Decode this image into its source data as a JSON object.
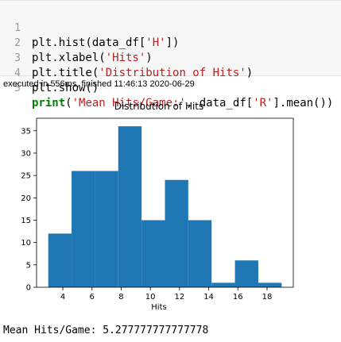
{
  "code_cell": {
    "line_numbers": [
      "1",
      "2",
      "3",
      "4",
      "5"
    ],
    "lines": [
      {
        "pre": "plt.hist(data_df[",
        "str": "'H'",
        "post": "])"
      },
      {
        "pre": "plt.xlabel(",
        "str": "'Hits'",
        "post": ")"
      },
      {
        "pre": "plt.title(",
        "str": "'Distribution of Hits'",
        "post": ")"
      },
      {
        "pre": "plt.show()",
        "str": "",
        "post": ""
      },
      {
        "kw": "print",
        "pre": "(",
        "str": "'Mean Hits/Game:'",
        "mid": ", data_df[",
        "str2": "'R'",
        "post": "].mean())"
      }
    ]
  },
  "execution_info": "executed in 556ms, finished 11:46:13 2020-06-29",
  "chart_data": {
    "type": "bar",
    "title": "Distribution of Hits",
    "xlabel": "Hits",
    "ylabel": "",
    "bins": [
      [
        3.0,
        4.6
      ],
      [
        4.6,
        6.2
      ],
      [
        6.2,
        7.8
      ],
      [
        7.8,
        9.4
      ],
      [
        9.4,
        11.0
      ],
      [
        11.0,
        12.6
      ],
      [
        12.6,
        14.2
      ],
      [
        14.2,
        15.8
      ],
      [
        15.8,
        17.4
      ],
      [
        17.4,
        19.0
      ]
    ],
    "values": [
      12,
      26,
      26,
      36,
      15,
      24,
      15,
      1,
      6,
      1
    ],
    "xlim": [
      2.2,
      19.8
    ],
    "ylim": [
      0,
      37.8
    ],
    "xticks": [
      "4",
      "6",
      "8",
      "10",
      "12",
      "14",
      "16",
      "18"
    ],
    "yticks": [
      "0",
      "5",
      "10",
      "15",
      "20",
      "25",
      "30",
      "35"
    ],
    "bar_color": "#1f77b4",
    "grid": false
  },
  "output_text": "Mean Hits/Game: 5.277777777777778"
}
